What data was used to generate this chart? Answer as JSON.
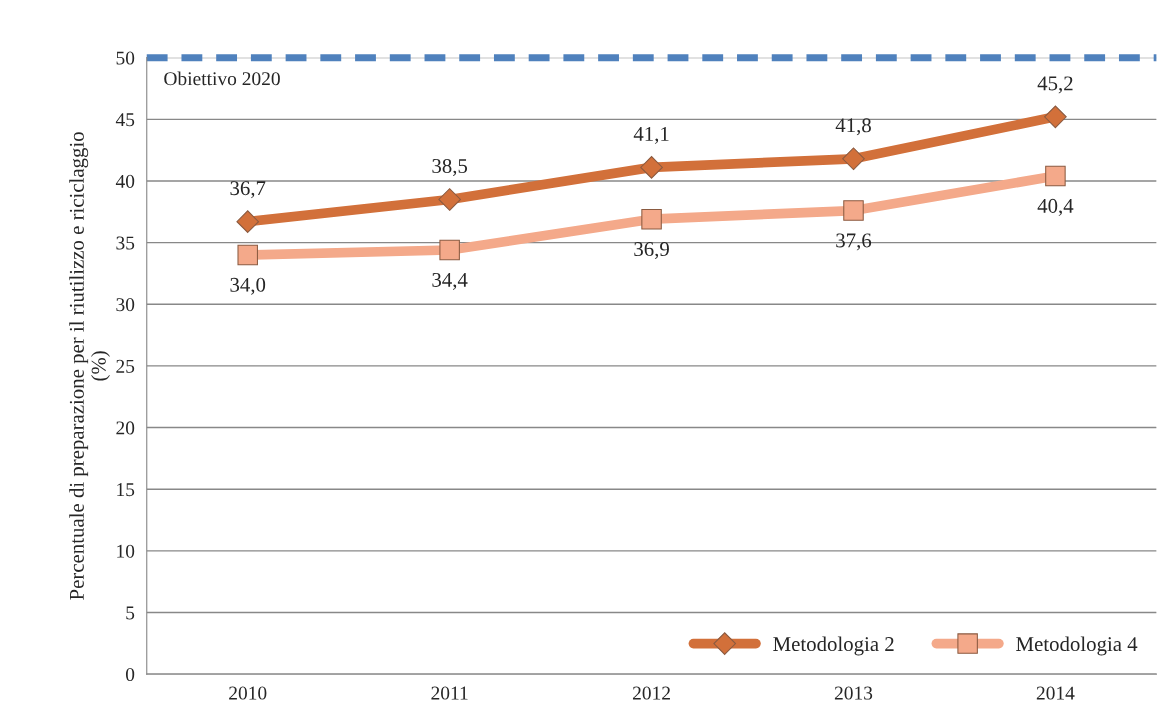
{
  "chart_data": {
    "type": "line",
    "ylabel": "Percentuale di preparazione per il riutilizzo e riciclaggio\n(%)",
    "categories": [
      "2010",
      "2011",
      "2012",
      "2013",
      "2014"
    ],
    "series": [
      {
        "name": "Metodologia 2",
        "color": "#d2703a",
        "marker": "diamond",
        "values": [
          36.7,
          38.5,
          41.1,
          41.8,
          45.2
        ],
        "value_labels": [
          "36,7",
          "38,5",
          "41,1",
          "41,8",
          "45,2"
        ]
      },
      {
        "name": "Metodologia 4",
        "color": "#f4a98a",
        "marker": "square",
        "values": [
          34.0,
          34.4,
          36.9,
          37.6,
          40.4
        ],
        "value_labels": [
          "34,0",
          "34,4",
          "36,9",
          "37,6",
          "40,4"
        ]
      }
    ],
    "ylim": [
      0,
      50
    ],
    "yticks": [
      0,
      5,
      10,
      15,
      20,
      25,
      30,
      35,
      40,
      45,
      50
    ],
    "ref_lines": [
      {
        "axis": "y",
        "value": 50,
        "label": "Obiettivo 2020",
        "color": "#4f81bd",
        "line_style": "dashed"
      }
    ],
    "grid": "y",
    "legend": "bottom right",
    "line_style": "solid"
  }
}
